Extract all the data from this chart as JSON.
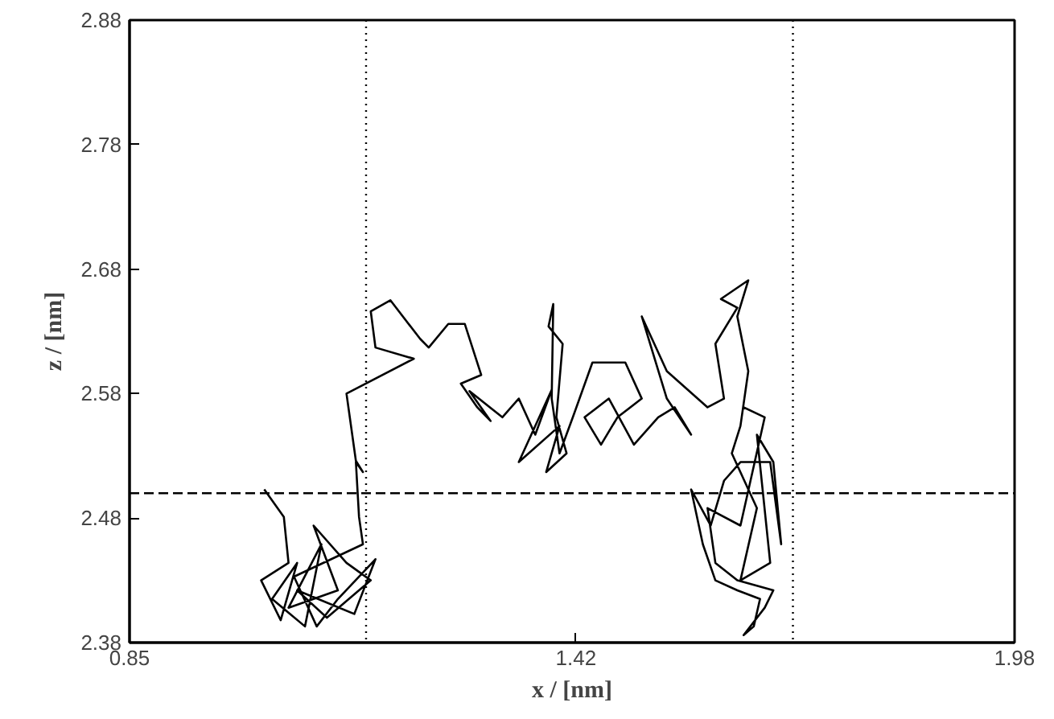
{
  "chart_data": {
    "type": "line",
    "xlabel": "x / [nm]",
    "ylabel": "z / [nm]",
    "xlim": [
      0.85,
      1.98
    ],
    "xticks": [
      0.85,
      1.42,
      1.98
    ],
    "ylim": [
      2.38,
      2.88
    ],
    "yticks": [
      2.38,
      2.48,
      2.58,
      2.68,
      2.78,
      2.88
    ],
    "grid": false,
    "marker": "none",
    "line_style": "solid",
    "x": [
      1.022,
      1.047,
      1.053,
      1.018,
      1.043,
      1.064,
      1.032,
      1.074,
      1.095,
      1.053,
      1.116,
      1.085,
      1.127,
      1.158,
      1.102,
      1.064,
      1.137,
      1.164,
      1.116,
      1.089,
      1.06,
      1.148,
      1.143,
      1.139,
      1.148,
      1.139,
      1.127,
      1.213,
      1.164,
      1.158,
      1.183,
      1.221,
      1.232,
      1.257,
      1.278,
      1.299,
      1.273,
      1.294,
      1.311,
      1.284,
      1.326,
      1.347,
      1.368,
      1.389,
      1.347,
      1.399,
      1.382,
      1.408,
      1.395,
      1.403,
      1.385,
      1.391,
      1.389,
      1.399,
      1.416,
      1.441,
      1.483,
      1.504,
      1.473,
      1.452,
      1.431,
      1.462,
      1.494,
      1.525,
      1.546,
      1.567,
      1.536,
      1.504,
      1.536,
      1.588,
      1.609,
      1.598,
      1.626,
      1.605,
      1.64,
      1.626,
      1.64,
      1.63,
      1.619,
      1.651,
      1.63,
      1.668,
      1.651,
      1.672,
      1.682,
      1.668,
      1.63,
      1.609,
      1.592,
      1.567,
      1.582,
      1.598,
      1.626,
      1.655,
      1.647,
      1.634,
      1.661,
      1.672,
      1.626,
      1.598,
      1.588,
      1.63,
      1.661,
      1.634
    ],
    "series": [
      {
        "color": "#000000",
        "values": [
          2.503,
          2.481,
          2.444,
          2.43,
          2.398,
          2.444,
          2.415,
          2.393,
          2.459,
          2.408,
          2.422,
          2.474,
          2.444,
          2.43,
          2.4,
          2.422,
          2.403,
          2.447,
          2.415,
          2.393,
          2.433,
          2.459,
          2.481,
          2.525,
          2.517,
          2.526,
          2.58,
          2.608,
          2.617,
          2.646,
          2.655,
          2.624,
          2.617,
          2.636,
          2.636,
          2.595,
          2.588,
          2.569,
          2.558,
          2.582,
          2.561,
          2.576,
          2.547,
          2.583,
          2.525,
          2.554,
          2.517,
          2.532,
          2.561,
          2.62,
          2.634,
          2.652,
          2.576,
          2.532,
          2.561,
          2.605,
          2.605,
          2.576,
          2.561,
          2.539,
          2.561,
          2.576,
          2.539,
          2.561,
          2.569,
          2.547,
          2.576,
          2.642,
          2.598,
          2.569,
          2.576,
          2.62,
          2.649,
          2.656,
          2.671,
          2.642,
          2.598,
          2.554,
          2.532,
          2.488,
          2.43,
          2.444,
          2.547,
          2.525,
          2.459,
          2.525,
          2.525,
          2.51,
          2.474,
          2.503,
          2.459,
          2.43,
          2.422,
          2.415,
          2.393,
          2.386,
          2.408,
          2.422,
          2.43,
          2.444,
          2.488,
          2.474,
          2.561,
          2.569
        ]
      }
    ],
    "ref_lines": [
      {
        "axis": "x",
        "value": 1.152,
        "line_style": "dotted",
        "color": "#000000"
      },
      {
        "axis": "x",
        "value": 1.697,
        "line_style": "dotted",
        "color": "#000000"
      },
      {
        "axis": "y",
        "value": 2.5,
        "line_style": "dashed",
        "color": "#000000"
      }
    ]
  }
}
